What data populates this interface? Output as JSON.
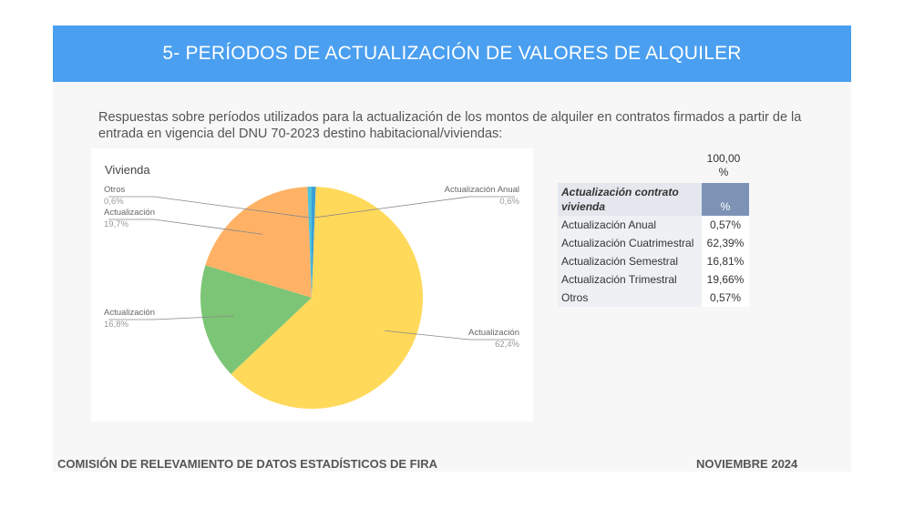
{
  "header": {
    "title": "5- PERÍODOS DE ACTUALIZACIÓN DE VALORES DE ALQUILER"
  },
  "intro": "Respuestas sobre períodos utilizados para la actualización de los montos de alquiler en contratos firmados a partir de la entrada en vigencia del DNU 70-2023 destino habitacional/viviendas:",
  "chart_data": {
    "type": "pie",
    "title": "Vivienda",
    "slices": [
      {
        "label": "Actualización Anual",
        "value": 0.6,
        "display": "0,6%",
        "color": "#3aa0d8"
      },
      {
        "label": "Actualización",
        "value": 62.4,
        "display": "62,4%",
        "color": "#ffd95a"
      },
      {
        "label": "Actualización",
        "value": 16.8,
        "display": "16,8%",
        "color": "#7cc576"
      },
      {
        "label": "Actualización",
        "value": 19.7,
        "display": "19,7%",
        "color": "#ffb266"
      },
      {
        "label": "Otros",
        "value": 0.6,
        "display": "0,6%",
        "color": "#4fc3d9"
      }
    ]
  },
  "table": {
    "total": "100,00 %",
    "header_label": "Actualización contrato vivienda",
    "header_pct": "%",
    "rows": [
      {
        "label": "Actualización Anual",
        "value": "0,57%"
      },
      {
        "label": "Actualización Cuatrimestral",
        "value": "62,39%"
      },
      {
        "label": "Actualización Semestral",
        "value": "16,81%"
      },
      {
        "label": "Actualización Trimestral",
        "value": "19,66%"
      },
      {
        "label": "Otros",
        "value": "0,57%"
      }
    ]
  },
  "footer": {
    "left": "COMISIÓN DE RELEVAMIENTO DE DATOS ESTADÍSTICOS DE FIRA",
    "right": "NOVIEMBRE 2024"
  }
}
